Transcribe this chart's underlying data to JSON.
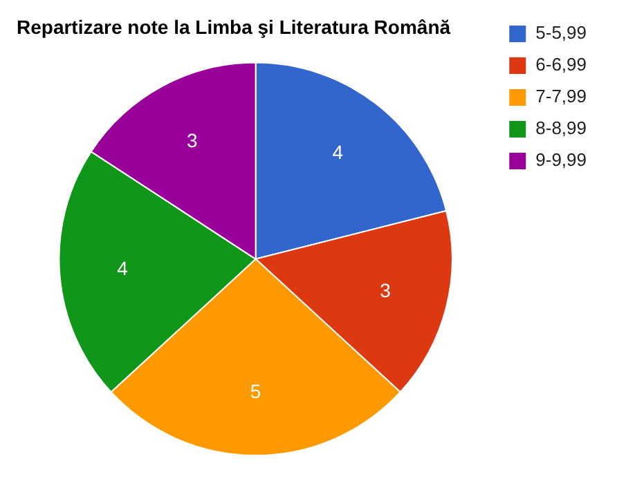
{
  "chart_data": {
    "type": "pie",
    "title": "Repartizare note la Limba şi Literatura Română",
    "categories": [
      "5-5,99",
      "6-6,99",
      "7-7,99",
      "8-8,99",
      "9-9,99"
    ],
    "values": [
      4,
      3,
      5,
      4,
      3
    ],
    "colors": [
      "#3366cc",
      "#dc3912",
      "#ff9900",
      "#109618",
      "#990099"
    ],
    "data_labels": true,
    "legend": "right"
  }
}
